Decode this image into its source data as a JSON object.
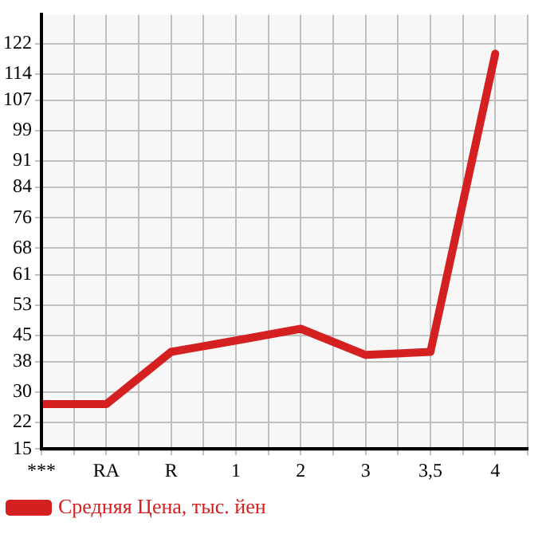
{
  "chart_data": {
    "type": "line",
    "categories": [
      "***",
      "RA",
      "R",
      "1",
      "2",
      "3",
      "3,5",
      "4"
    ],
    "series": [
      {
        "name": "Средняя Цена, тыс. йен",
        "color": "#d42020",
        "values": [
          26.8,
          26.8,
          40.6,
          43.6,
          46.7,
          39.8,
          40.6,
          119.3
        ]
      }
    ],
    "ylim": [
      15,
      129.6
    ],
    "yticks": [
      15,
      22,
      30,
      38,
      45,
      53,
      61,
      68,
      76,
      84,
      91,
      99,
      107,
      114,
      122
    ],
    "grid": true,
    "legend": "bottom",
    "marker": "none",
    "line_style": "solid"
  }
}
